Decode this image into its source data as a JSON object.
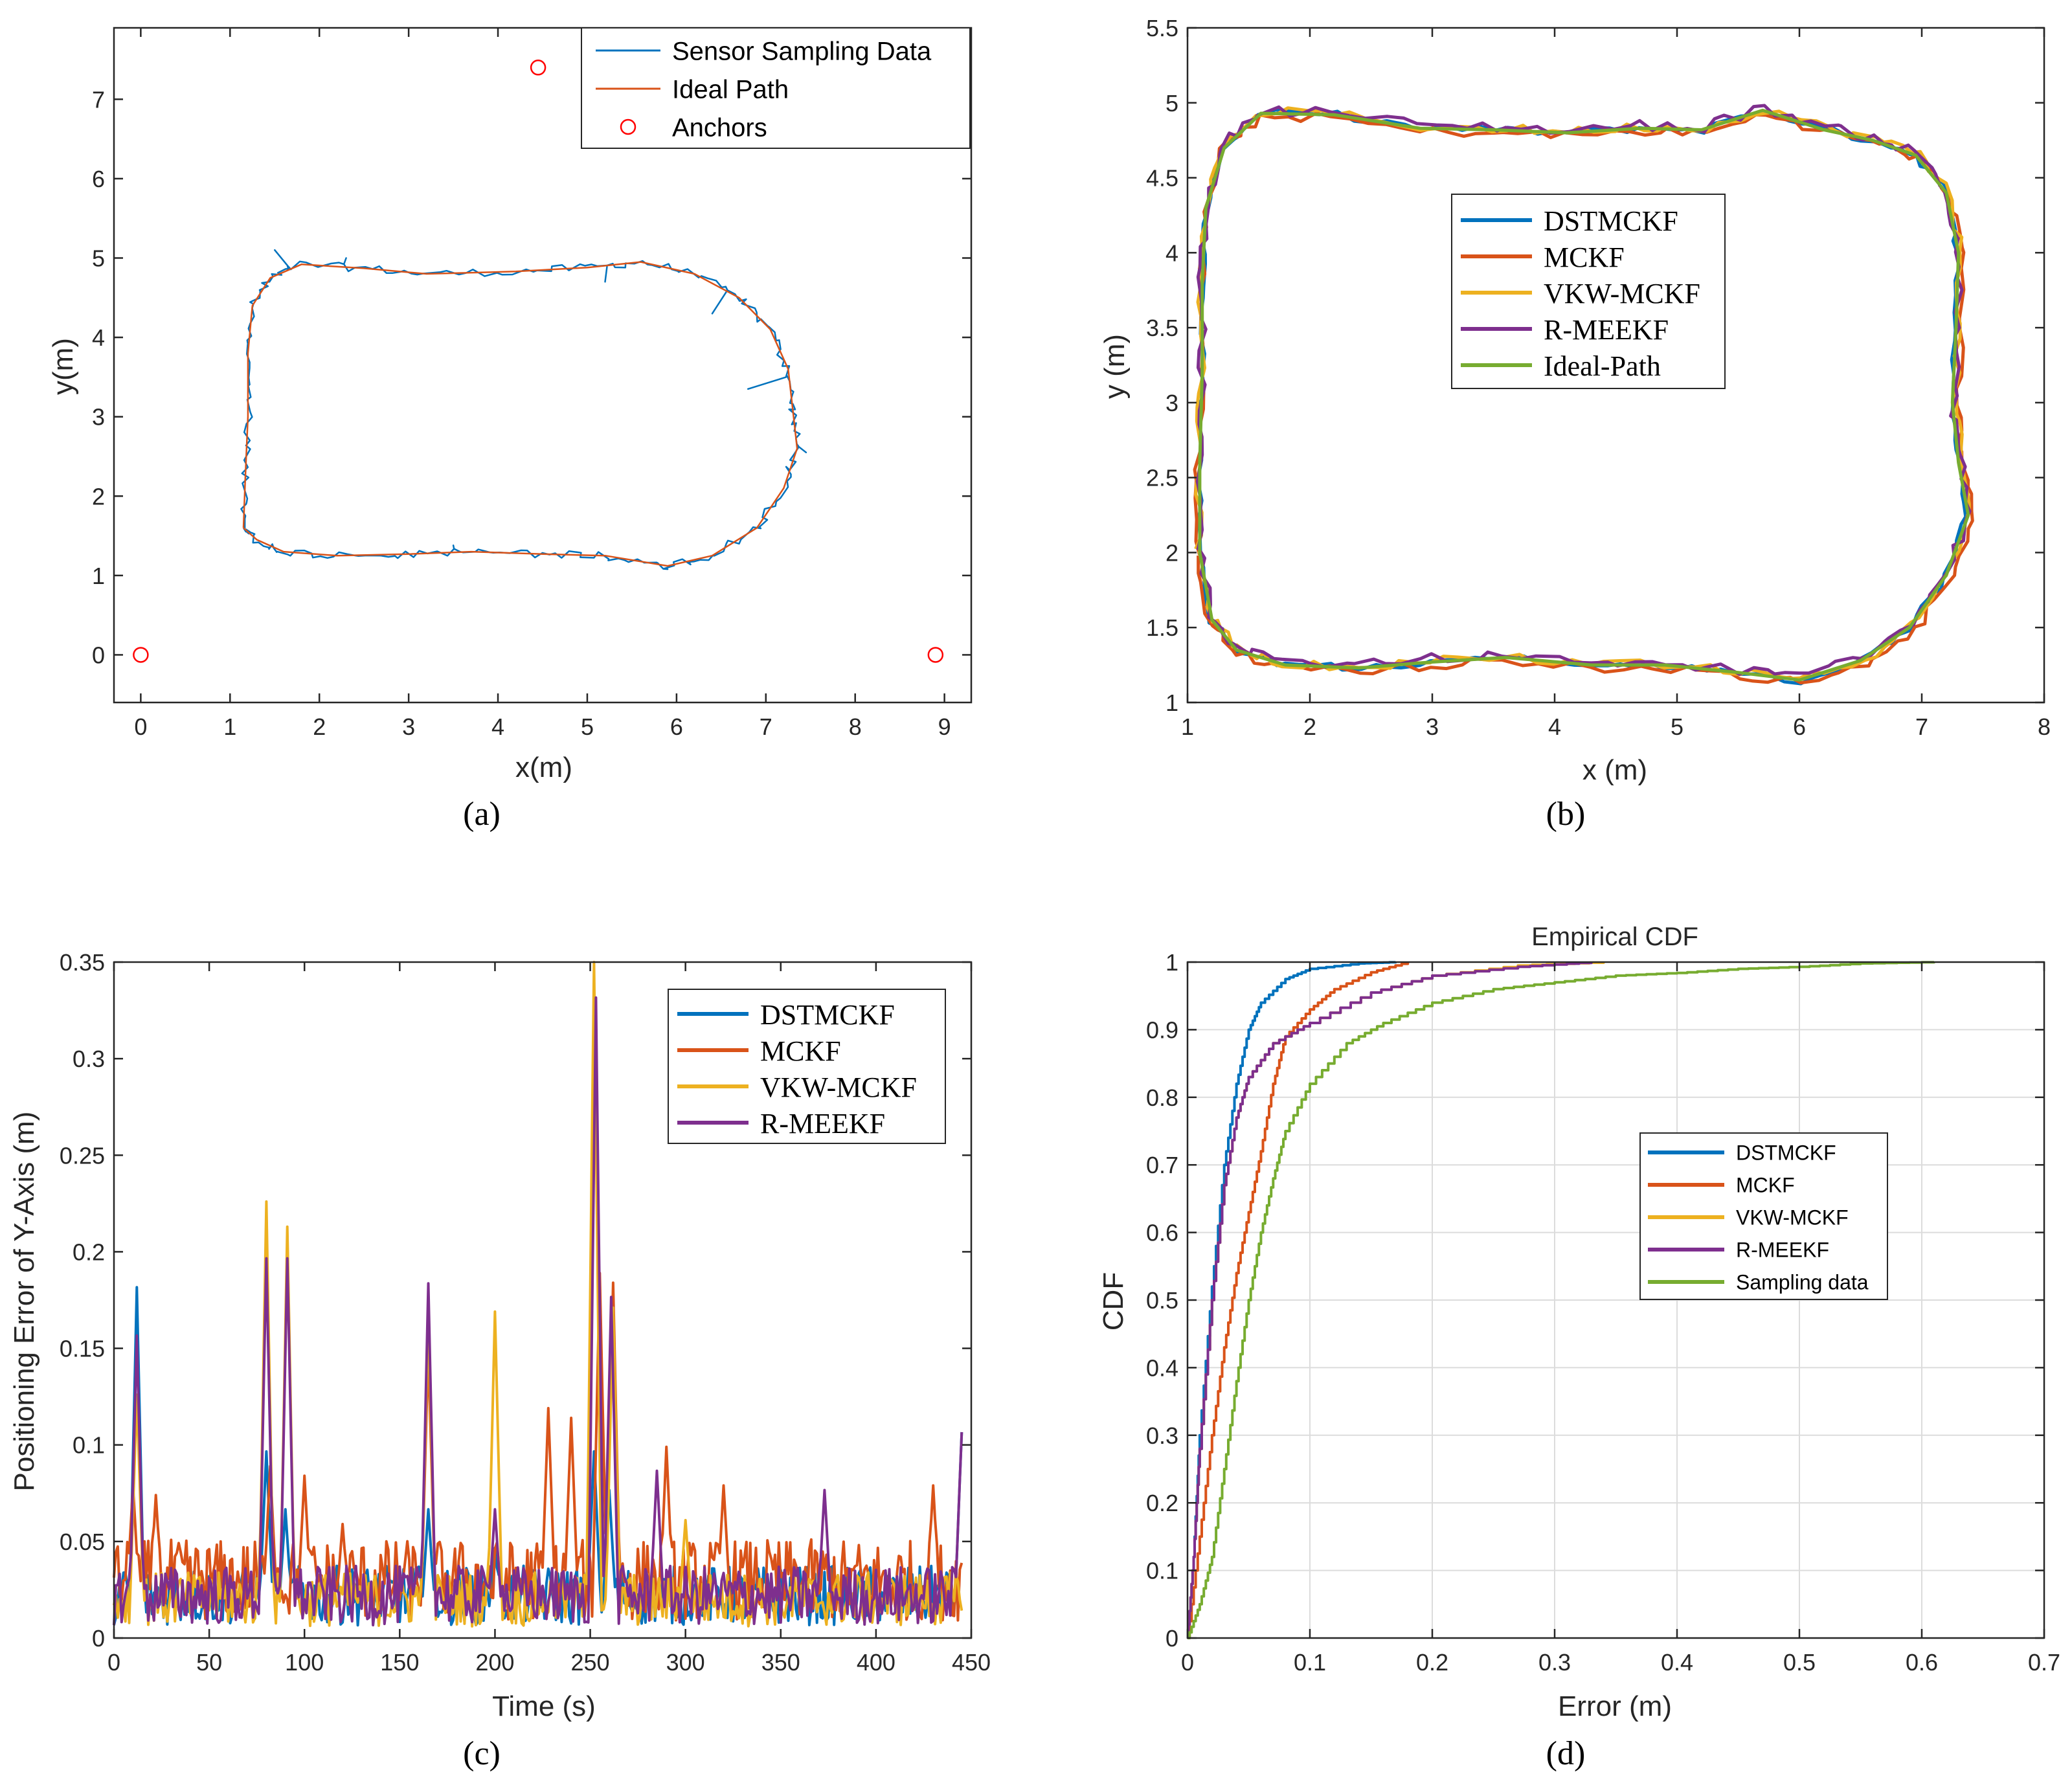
{
  "colors": {
    "blue": "#0072BD",
    "orange": "#D95319",
    "yellow": "#EDB120",
    "purple": "#7E2F8E",
    "green": "#77AC30",
    "anchor_red": "#FF0000",
    "grid": "#DCDCDC"
  },
  "chart_data": [
    {
      "id": "a",
      "type": "line",
      "caption": "(a)",
      "title": "",
      "xlabel": "x(m)",
      "ylabel": "y(m)",
      "xlim": [
        -0.3,
        9.3
      ],
      "ylim": [
        -0.6,
        7.9
      ],
      "xticks": [
        0,
        1,
        2,
        3,
        4,
        5,
        6,
        7,
        8,
        9
      ],
      "yticks": [
        0,
        1,
        2,
        3,
        4,
        5,
        6,
        7
      ],
      "grid": false,
      "legend_position": "top-right",
      "legend": [
        "Sensor Sampling Data",
        "Ideal Path",
        "Anchors"
      ],
      "ideal_path": [
        [
          1.15,
          1.6
        ],
        [
          1.17,
          2.2
        ],
        [
          1.2,
          3.0
        ],
        [
          1.2,
          3.8
        ],
        [
          1.25,
          4.4
        ],
        [
          1.45,
          4.75
        ],
        [
          1.8,
          4.92
        ],
        [
          2.5,
          4.87
        ],
        [
          3.2,
          4.8
        ],
        [
          4.2,
          4.83
        ],
        [
          5.0,
          4.88
        ],
        [
          5.6,
          4.95
        ],
        [
          6.2,
          4.8
        ],
        [
          6.7,
          4.5
        ],
        [
          7.05,
          4.1
        ],
        [
          7.25,
          3.6
        ],
        [
          7.3,
          3.1
        ],
        [
          7.35,
          2.6
        ],
        [
          7.2,
          2.1
        ],
        [
          6.9,
          1.6
        ],
        [
          6.4,
          1.25
        ],
        [
          5.9,
          1.12
        ],
        [
          5.2,
          1.25
        ],
        [
          4.5,
          1.27
        ],
        [
          3.7,
          1.3
        ],
        [
          3.0,
          1.27
        ],
        [
          2.2,
          1.25
        ],
        [
          1.6,
          1.3
        ],
        [
          1.3,
          1.45
        ],
        [
          1.15,
          1.6
        ]
      ],
      "sensor_noise": {
        "jitter_m": 0.05,
        "spikes": [
          [
            1.5,
            5.1
          ],
          [
            2.3,
            5.0
          ],
          [
            5.2,
            4.7
          ],
          [
            6.4,
            4.3
          ],
          [
            6.8,
            3.35
          ],
          [
            7.45,
            2.55
          ],
          [
            3.5,
            1.38
          ],
          [
            5.9,
            1.08
          ]
        ]
      },
      "anchors": [
        [
          0,
          0
        ],
        [
          4.45,
          7.4
        ],
        [
          8.9,
          0
        ]
      ]
    },
    {
      "id": "b",
      "type": "line",
      "caption": "(b)",
      "title": "",
      "xlabel": "x (m)",
      "ylabel": "y (m)",
      "xlim": [
        1,
        8
      ],
      "ylim": [
        1,
        5.5
      ],
      "xticks": [
        1,
        2,
        3,
        4,
        5,
        6,
        7,
        8
      ],
      "yticks": [
        1,
        1.5,
        2,
        2.5,
        3,
        3.5,
        4,
        4.5,
        5,
        5.5
      ],
      "grid": false,
      "legend_position": "center",
      "legend": [
        "DSTMCKF",
        "MCKF",
        "VKW-MCKF",
        "R-MEEKF",
        "Ideal-Path"
      ],
      "ideal_path": [
        [
          1.1,
          2.0
        ],
        [
          1.1,
          2.6
        ],
        [
          1.12,
          3.2
        ],
        [
          1.12,
          3.8
        ],
        [
          1.15,
          4.3
        ],
        [
          1.3,
          4.7
        ],
        [
          1.6,
          4.93
        ],
        [
          2.2,
          4.92
        ],
        [
          2.9,
          4.83
        ],
        [
          3.5,
          4.82
        ],
        [
          4.1,
          4.8
        ],
        [
          4.7,
          4.83
        ],
        [
          5.2,
          4.82
        ],
        [
          5.7,
          4.95
        ],
        [
          6.2,
          4.82
        ],
        [
          6.6,
          4.75
        ],
        [
          6.95,
          4.65
        ],
        [
          7.2,
          4.4
        ],
        [
          7.3,
          4.0
        ],
        [
          7.28,
          3.5
        ],
        [
          7.25,
          3.0
        ],
        [
          7.3,
          2.6
        ],
        [
          7.38,
          2.25
        ],
        [
          7.2,
          1.85
        ],
        [
          6.9,
          1.5
        ],
        [
          6.5,
          1.28
        ],
        [
          6.0,
          1.15
        ],
        [
          5.5,
          1.2
        ],
        [
          4.9,
          1.25
        ],
        [
          4.3,
          1.25
        ],
        [
          3.6,
          1.3
        ],
        [
          3.0,
          1.27
        ],
        [
          2.4,
          1.23
        ],
        [
          1.8,
          1.25
        ],
        [
          1.4,
          1.35
        ],
        [
          1.2,
          1.55
        ],
        [
          1.1,
          2.0
        ]
      ]
    },
    {
      "id": "c",
      "type": "line",
      "caption": "(c)",
      "title": "",
      "xlabel": "Time (s)",
      "ylabel": "Positioning Error of Y-Axis (m)",
      "xlim": [
        0,
        450
      ],
      "ylim": [
        0,
        0.35
      ],
      "xticks": [
        0,
        50,
        100,
        150,
        200,
        250,
        300,
        350,
        400,
        450
      ],
      "yticks": [
        0,
        0.05,
        0.1,
        0.15,
        0.2,
        0.25,
        0.3,
        0.35
      ],
      "grid": false,
      "legend_position": "top-right",
      "legend": [
        "DSTMCKF",
        "MCKF",
        "VKW-MCKF",
        "R-MEEKF"
      ],
      "duration_s": 445,
      "series": [
        {
          "name": "DSTMCKF",
          "color_key": "blue",
          "base": 0.022,
          "peaks": [
            [
              12,
              0.175
            ],
            [
              80,
              0.09
            ],
            [
              90,
              0.06
            ],
            [
              165,
              0.06
            ],
            [
              200,
              0.04
            ],
            [
              252,
              0.09
            ],
            [
              260,
              0.07
            ],
            [
              445,
              0.1
            ]
          ]
        },
        {
          "name": "MCKF",
          "color_key": "orange",
          "base": 0.03,
          "peaks": [
            [
              10,
              0.07
            ],
            [
              22,
              0.065
            ],
            [
              82,
              0.08
            ],
            [
              100,
              0.075
            ],
            [
              120,
              0.05
            ],
            [
              165,
              0.14
            ],
            [
              228,
              0.11
            ],
            [
              240,
              0.105
            ],
            [
              255,
              0.18
            ],
            [
              262,
              0.175
            ],
            [
              290,
              0.09
            ],
            [
              320,
              0.07
            ],
            [
              430,
              0.07
            ]
          ]
        },
        {
          "name": "VKW-MCKF",
          "color_key": "yellow",
          "base": 0.02,
          "peaks": [
            [
              12,
              0.12
            ],
            [
              80,
              0.22
            ],
            [
              91,
              0.207
            ],
            [
              165,
              0.16
            ],
            [
              200,
              0.163
            ],
            [
              252,
              0.348
            ],
            [
              262,
              0.165
            ],
            [
              300,
              0.055
            ]
          ]
        },
        {
          "name": "R-MEEKF",
          "color_key": "purple",
          "base": 0.022,
          "peaks": [
            [
              12,
              0.15
            ],
            [
              80,
              0.19
            ],
            [
              91,
              0.19
            ],
            [
              165,
              0.177
            ],
            [
              200,
              0.06
            ],
            [
              253,
              0.325
            ],
            [
              261,
              0.17
            ],
            [
              285,
              0.08
            ],
            [
              373,
              0.07
            ],
            [
              445,
              0.1
            ]
          ]
        }
      ]
    },
    {
      "id": "d",
      "type": "line",
      "caption": "(d)",
      "title": "Empirical CDF",
      "xlabel": "Error (m)",
      "ylabel": "CDF",
      "xlim": [
        0,
        0.7
      ],
      "ylim": [
        0,
        1
      ],
      "xticks": [
        0,
        0.1,
        0.2,
        0.3,
        0.4,
        0.5,
        0.6,
        0.7
      ],
      "yticks": [
        0,
        0.1,
        0.2,
        0.3,
        0.4,
        0.5,
        0.6,
        0.7,
        0.8,
        0.9,
        1
      ],
      "grid": true,
      "legend_position": "center-right",
      "legend": [
        "DSTMCKF",
        "MCKF",
        "VKW-MCKF",
        "R-MEEKF",
        "Sampling data"
      ],
      "series": [
        {
          "name": "DSTMCKF",
          "color_key": "blue",
          "points": [
            [
              0,
              0
            ],
            [
              0.005,
              0.12
            ],
            [
              0.01,
              0.3
            ],
            [
              0.02,
              0.52
            ],
            [
              0.03,
              0.7
            ],
            [
              0.04,
              0.82
            ],
            [
              0.05,
              0.9
            ],
            [
              0.06,
              0.94
            ],
            [
              0.08,
              0.975
            ],
            [
              0.1,
              0.99
            ],
            [
              0.14,
              0.998
            ],
            [
              0.17,
              1.0
            ]
          ]
        },
        {
          "name": "MCKF",
          "color_key": "orange",
          "points": [
            [
              0,
              0
            ],
            [
              0.01,
              0.15
            ],
            [
              0.02,
              0.3
            ],
            [
              0.03,
              0.43
            ],
            [
              0.04,
              0.54
            ],
            [
              0.05,
              0.63
            ],
            [
              0.06,
              0.72
            ],
            [
              0.07,
              0.82
            ],
            [
              0.08,
              0.89
            ],
            [
              0.1,
              0.93
            ],
            [
              0.12,
              0.96
            ],
            [
              0.15,
              0.985
            ],
            [
              0.18,
              1.0
            ]
          ]
        },
        {
          "name": "VKW-MCKF",
          "color_key": "yellow",
          "points": [
            [
              0,
              0
            ],
            [
              0.005,
              0.12
            ],
            [
              0.01,
              0.28
            ],
            [
              0.02,
              0.5
            ],
            [
              0.03,
              0.67
            ],
            [
              0.04,
              0.77
            ],
            [
              0.05,
              0.83
            ],
            [
              0.07,
              0.88
            ],
            [
              0.1,
              0.91
            ],
            [
              0.15,
              0.955
            ],
            [
              0.2,
              0.98
            ],
            [
              0.27,
              0.995
            ],
            [
              0.34,
              1.0
            ]
          ]
        },
        {
          "name": "R-MEEKF",
          "color_key": "purple",
          "points": [
            [
              0,
              0
            ],
            [
              0.005,
              0.12
            ],
            [
              0.01,
              0.28
            ],
            [
              0.02,
              0.5
            ],
            [
              0.03,
              0.67
            ],
            [
              0.04,
              0.77
            ],
            [
              0.05,
              0.83
            ],
            [
              0.07,
              0.88
            ],
            [
              0.1,
              0.91
            ],
            [
              0.15,
              0.955
            ],
            [
              0.2,
              0.98
            ],
            [
              0.27,
              0.993
            ],
            [
              0.33,
              1.0
            ]
          ]
        },
        {
          "name": "Sampling data",
          "color_key": "green",
          "points": [
            [
              0,
              0
            ],
            [
              0.01,
              0.05
            ],
            [
              0.02,
              0.12
            ],
            [
              0.03,
              0.25
            ],
            [
              0.04,
              0.38
            ],
            [
              0.05,
              0.5
            ],
            [
              0.06,
              0.6
            ],
            [
              0.07,
              0.68
            ],
            [
              0.08,
              0.75
            ],
            [
              0.1,
              0.82
            ],
            [
              0.13,
              0.88
            ],
            [
              0.16,
              0.91
            ],
            [
              0.2,
              0.94
            ],
            [
              0.25,
              0.96
            ],
            [
              0.3,
              0.97
            ],
            [
              0.35,
              0.98
            ],
            [
              0.4,
              0.984
            ],
            [
              0.45,
              0.99
            ],
            [
              0.5,
              0.993
            ],
            [
              0.55,
              0.998
            ],
            [
              0.61,
              1.0
            ]
          ]
        }
      ]
    }
  ]
}
